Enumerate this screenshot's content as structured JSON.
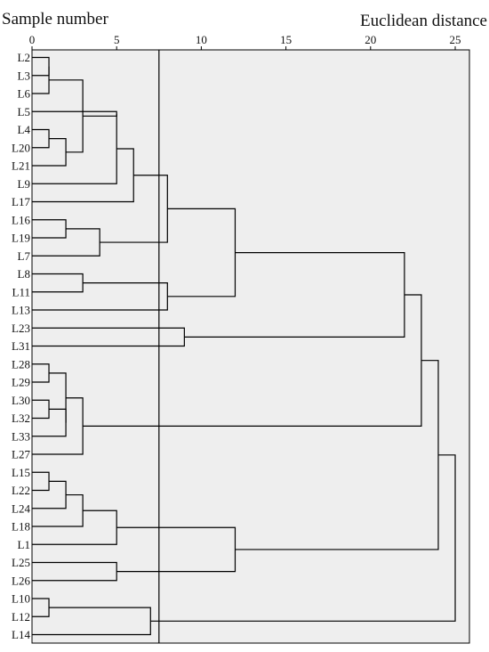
{
  "chart_data": {
    "type": "dendrogram",
    "title_left": "Sample number",
    "title_right": "Euclidean distance",
    "x_ticks": [
      0,
      5,
      10,
      15,
      20,
      25
    ],
    "xlim": [
      0,
      25
    ],
    "cut_line": 7.5,
    "leaves": [
      "L2",
      "L3",
      "L6",
      "L5",
      "L4",
      "L20",
      "L21",
      "L9",
      "L17",
      "L16",
      "L19",
      "L7",
      "L8",
      "L11",
      "L13",
      "L23",
      "L31",
      "L28",
      "L29",
      "L30",
      "L32",
      "L33",
      "L27",
      "L15",
      "L22",
      "L24",
      "L18",
      "L1",
      "L25",
      "L26",
      "L10",
      "L12",
      "L14"
    ],
    "merges": [
      {
        "id": "m1",
        "left": "L2",
        "right": "L3",
        "height": 1
      },
      {
        "id": "m2",
        "left": "m1",
        "right": "L6",
        "height": 1
      },
      {
        "id": "m3",
        "left": "L4",
        "right": "L20",
        "height": 1
      },
      {
        "id": "m4",
        "left": "m3",
        "right": "L21",
        "height": 2
      },
      {
        "id": "m5",
        "left": "m2",
        "right": "m4",
        "height": 3
      },
      {
        "id": "m6",
        "left": "L5",
        "right": "m5",
        "height": 5
      },
      {
        "id": "m7",
        "left": "m6",
        "right": "L9",
        "height": 5
      },
      {
        "id": "m8",
        "left": "m7",
        "right": "L17",
        "height": 6
      },
      {
        "id": "m9",
        "left": "L16",
        "right": "L19",
        "height": 2
      },
      {
        "id": "m10",
        "left": "m9",
        "right": "L7",
        "height": 4
      },
      {
        "id": "m11",
        "left": "m8",
        "right": "m10",
        "height": 8
      },
      {
        "id": "m12",
        "left": "L8",
        "right": "L11",
        "height": 3
      },
      {
        "id": "m13",
        "left": "m12",
        "right": "L13",
        "height": 8
      },
      {
        "id": "m14",
        "left": "m11",
        "right": "m13",
        "height": 12
      },
      {
        "id": "m15",
        "left": "L23",
        "right": "L31",
        "height": 9
      },
      {
        "id": "m16",
        "left": "m14",
        "right": "m15",
        "height": 22
      },
      {
        "id": "m17",
        "left": "L28",
        "right": "L29",
        "height": 1
      },
      {
        "id": "m18",
        "left": "L30",
        "right": "L32",
        "height": 1
      },
      {
        "id": "m19",
        "left": "m18",
        "right": "L33",
        "height": 2
      },
      {
        "id": "m20",
        "left": "m17",
        "right": "m19",
        "height": 2
      },
      {
        "id": "m21",
        "left": "m20",
        "right": "L27",
        "height": 3
      },
      {
        "id": "m22",
        "left": "m16",
        "right": "m21",
        "height": 23
      },
      {
        "id": "m23",
        "left": "L15",
        "right": "L22",
        "height": 1
      },
      {
        "id": "m24",
        "left": "m23",
        "right": "L24",
        "height": 2
      },
      {
        "id": "m25",
        "left": "m24",
        "right": "L18",
        "height": 3
      },
      {
        "id": "m26",
        "left": "m25",
        "right": "L1",
        "height": 5
      },
      {
        "id": "m27",
        "left": "L25",
        "right": "L26",
        "height": 5
      },
      {
        "id": "m28",
        "left": "m26",
        "right": "m27",
        "height": 12
      },
      {
        "id": "m29",
        "left": "m22",
        "right": "m28",
        "height": 24
      },
      {
        "id": "m30",
        "left": "L10",
        "right": "L12",
        "height": 1
      },
      {
        "id": "m31",
        "left": "m30",
        "right": "L14",
        "height": 7
      },
      {
        "id": "m32",
        "left": "m29",
        "right": "m31",
        "height": 25
      }
    ]
  }
}
